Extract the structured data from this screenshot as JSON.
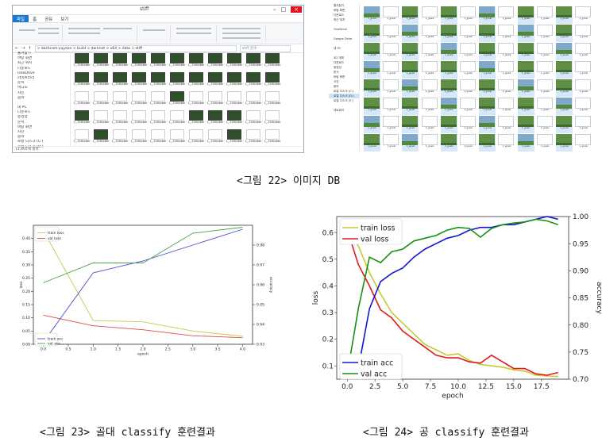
{
  "captions": {
    "fig22": "<그림 22> 이미지 DB",
    "fig23": "<그림 23> 골대 classify 훈련결과",
    "fig24": "<그림 24> 공 classify 훈련결과"
  },
  "explorer": {
    "title": "stiff",
    "ribbon_tabs": [
      "파일",
      "홈",
      "공유",
      "보기"
    ],
    "address": "> dashcam-yuyeon > build > darknet > x64 > data > stiff",
    "search_placeholder": "stiff 검색",
    "nav_items": [
      "즐겨찾기",
      "바탕 화면",
      "최근 위치",
      "다운로드",
      "OneDrive",
      "라이브러리",
      "문서",
      "비디오",
      "사진",
      "음악",
      "",
      "내 PC",
      "다운로드",
      "동영상",
      "문서",
      "바탕 화면",
      "사진",
      "음악",
      "로컬 디스크 (C:)",
      "로컬 디스크 (D:)",
      "",
      "네트워크"
    ],
    "file_prefix": "1_150label",
    "status": "11,405개 항목"
  },
  "gallery": {
    "nav_items": [
      "즐겨찾기",
      "바탕 화면",
      "다운로드",
      "최근 위치",
      "",
      "OneDrive",
      "",
      "Google Drive",
      "",
      "내 PC",
      "",
      "3D 개체",
      "다운로드",
      "동영상",
      "문서",
      "바탕 화면",
      "사진",
      "음악",
      "로컬 디스크 (C:)",
      "로컬 디스크 (D:)",
      "로컬 디스크 (E:)",
      "",
      "네트워크"
    ],
    "cell_prefix": "1_goals"
  },
  "chart_data": [
    {
      "type": "line",
      "title": "",
      "xlabel": "epoch",
      "ylabel": "loss",
      "y2label": "accuracy",
      "x": [
        0,
        1,
        2,
        3,
        4
      ],
      "xticks": [
        "0.0",
        "0.5",
        "1.0",
        "1.5",
        "2.0",
        "2.5",
        "3.0",
        "3.5",
        "4.0"
      ],
      "ylim": [
        0.0,
        0.45
      ],
      "y2lim": [
        0.93,
        0.99
      ],
      "series": [
        {
          "name": "train loss",
          "axis": "left",
          "color": "#c9c947",
          "values": [
            0.43,
            0.09,
            0.085,
            0.05,
            0.03
          ]
        },
        {
          "name": "val loss",
          "axis": "left",
          "color": "#e04848",
          "values": [
            0.11,
            0.07,
            0.055,
            0.032,
            0.025
          ]
        },
        {
          "name": "train acc",
          "axis": "right",
          "color": "#4a4ad8",
          "values": [
            0.931,
            0.966,
            0.972,
            0.98,
            0.988
          ]
        },
        {
          "name": "val acc",
          "axis": "right",
          "color": "#4aa04a",
          "values": [
            0.961,
            0.971,
            0.971,
            0.986,
            0.989
          ]
        }
      ],
      "legend_loc": "bottom-left"
    },
    {
      "type": "line",
      "title": "",
      "xlabel": "epoch",
      "ylabel": "loss",
      "y2label": "accuracy",
      "x": [
        0,
        1,
        2,
        3,
        4,
        5,
        6,
        7,
        8,
        9,
        10,
        11,
        12,
        13,
        14,
        15,
        16,
        17,
        18,
        19
      ],
      "xticks": [
        "0.0",
        "2.5",
        "5.0",
        "7.5",
        "10.0",
        "12.5",
        "15.0",
        "17.5"
      ],
      "yticks": [
        "0.1",
        "0.2",
        "0.3",
        "0.4",
        "0.5",
        "0.6"
      ],
      "y2ticks": [
        "0.70",
        "0.75",
        "0.80",
        "0.85",
        "0.90",
        "0.95",
        "1.00"
      ],
      "ylim": [
        0.05,
        0.66
      ],
      "y2lim": [
        0.7,
        1.0
      ],
      "series": [
        {
          "name": "train loss",
          "axis": "left",
          "color": "#c8c832",
          "values": [
            0.61,
            0.55,
            0.45,
            0.37,
            0.3,
            0.26,
            0.22,
            0.18,
            0.16,
            0.14,
            0.145,
            0.12,
            0.105,
            0.1,
            0.095,
            0.085,
            0.08,
            0.065,
            0.062,
            0.06
          ]
        },
        {
          "name": "val loss",
          "axis": "left",
          "color": "#e01a1a",
          "values": [
            0.61,
            0.48,
            0.4,
            0.31,
            0.28,
            0.23,
            0.2,
            0.17,
            0.14,
            0.13,
            0.13,
            0.115,
            0.11,
            0.14,
            0.115,
            0.09,
            0.09,
            0.07,
            0.065,
            0.075
          ]
        },
        {
          "name": "train acc",
          "axis": "right",
          "color": "#1414d8",
          "values": [
            0.71,
            0.72,
            0.83,
            0.88,
            0.895,
            0.905,
            0.925,
            0.94,
            0.95,
            0.96,
            0.965,
            0.975,
            0.98,
            0.98,
            0.985,
            0.985,
            0.99,
            0.995,
            1.0,
            0.995
          ]
        },
        {
          "name": "val acc",
          "axis": "right",
          "color": "#169016",
          "values": [
            0.71,
            0.83,
            0.925,
            0.915,
            0.935,
            0.94,
            0.955,
            0.96,
            0.965,
            0.975,
            0.98,
            0.978,
            0.962,
            0.978,
            0.985,
            0.988,
            0.99,
            0.995,
            0.992,
            0.985
          ]
        }
      ],
      "legend_loc": "top-left / bottom-left"
    }
  ]
}
